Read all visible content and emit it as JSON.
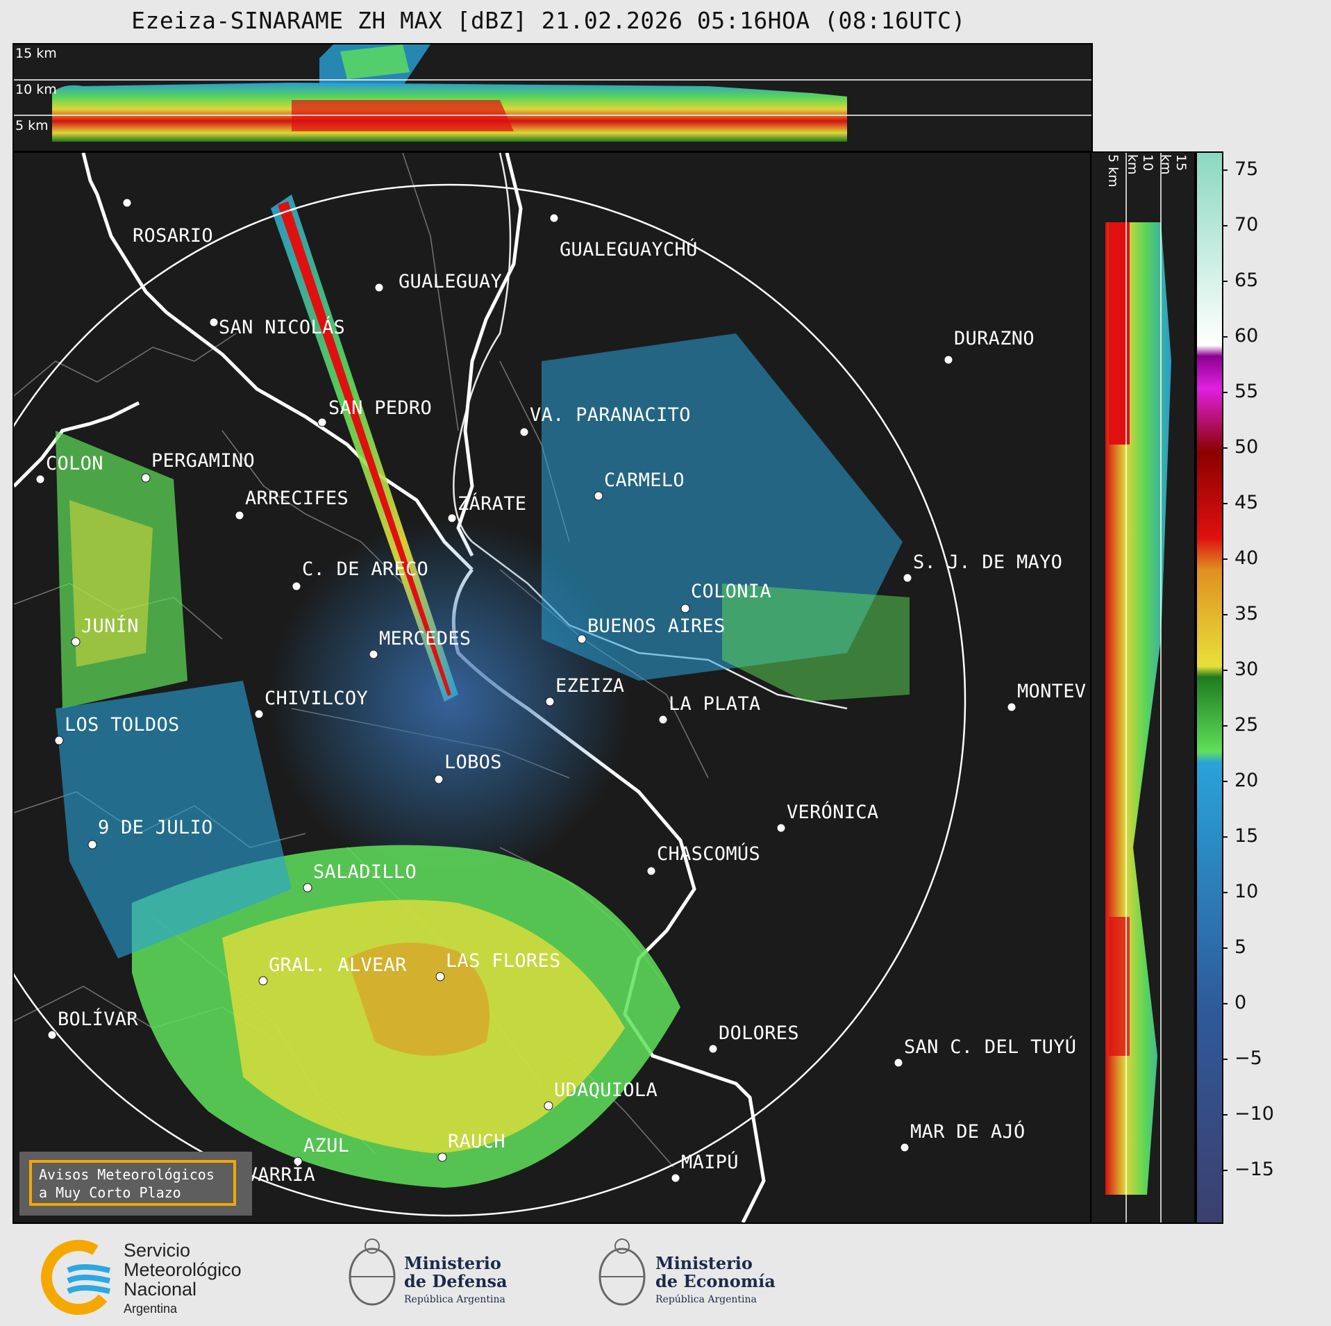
{
  "title": "Ezeiza-SINARAME ZH MAX [dBZ] 21.02.2026 05:16HOA (08:16UTC)",
  "height_panel": {
    "labels": [
      "15 km",
      "10 km",
      "5 km"
    ]
  },
  "colorbar": {
    "unit": "dBZ",
    "ticks": [
      "75",
      "70",
      "65",
      "60",
      "55",
      "50",
      "45",
      "40",
      "35",
      "30",
      "25",
      "20",
      "15",
      "10",
      "5",
      "0",
      "−5",
      "−10",
      "−15"
    ],
    "colors": {
      "purple_dark": "#3c3f6e",
      "blue_mid": "#2a77b4",
      "cyan": "#29a3d8",
      "green_light": "#5fe05a",
      "green_dark": "#1f7a1f",
      "yellow": "#e8e03a",
      "orange": "#e09020",
      "red": "#e01010",
      "dark_red": "#8c0000",
      "magenta": "#e020e0",
      "white": "#ffffff",
      "teal": "#8ad8c0"
    }
  },
  "map": {
    "cities": [
      {
        "name": "ROSARIO"
      },
      {
        "name": "GUALEGUAYCHÚ"
      },
      {
        "name": "GUALEGUAY"
      },
      {
        "name": "SAN NICOLÁS"
      },
      {
        "name": "DURAZNO"
      },
      {
        "name": "SAN PEDRO"
      },
      {
        "name": "VA. PARANACITO"
      },
      {
        "name": "COLON"
      },
      {
        "name": "PERGAMINO"
      },
      {
        "name": "CARMELO"
      },
      {
        "name": "ARRECIFES"
      },
      {
        "name": "ZÁRATE"
      },
      {
        "name": "S. J. DE MAYO"
      },
      {
        "name": "C. DE ARECO"
      },
      {
        "name": "COLONIA"
      },
      {
        "name": "JUNÍN"
      },
      {
        "name": "BUENOS AIRES"
      },
      {
        "name": "MERCEDES"
      },
      {
        "name": "MONTEV"
      },
      {
        "name": "EZEIZA"
      },
      {
        "name": "CHIVILCOY"
      },
      {
        "name": "LA PLATA"
      },
      {
        "name": "LOS TOLDOS"
      },
      {
        "name": "LOBOS"
      },
      {
        "name": "VERÓNICA"
      },
      {
        "name": "9 DE JULIO"
      },
      {
        "name": "CHASCOMÚS"
      },
      {
        "name": "SALADILLO"
      },
      {
        "name": "GRAL. ALVEAR"
      },
      {
        "name": "LAS FLORES"
      },
      {
        "name": "BOLÍVAR"
      },
      {
        "name": "DOLORES"
      },
      {
        "name": "SAN C. DEL TUYÚ"
      },
      {
        "name": "UDAQUIOLA"
      },
      {
        "name": "AZUL"
      },
      {
        "name": "RAUCH"
      },
      {
        "name": "MAR DE AJÓ"
      },
      {
        "name": "OLAVARRÍA"
      },
      {
        "name": "MAIPÚ"
      }
    ]
  },
  "warning_box": {
    "line1": "Avisos Meteorológicos",
    "line2": "a Muy Corto Plazo"
  },
  "footer": {
    "smn": {
      "line1": "Servicio",
      "line2": "Meteorológico",
      "line3": "Nacional",
      "line4": "Argentina"
    },
    "defensa": {
      "line1": "Ministerio",
      "line2": "de Defensa",
      "line3": "República Argentina"
    },
    "economia": {
      "line1": "Ministerio",
      "line2": "de Economía",
      "line3": "República Argentina"
    }
  }
}
